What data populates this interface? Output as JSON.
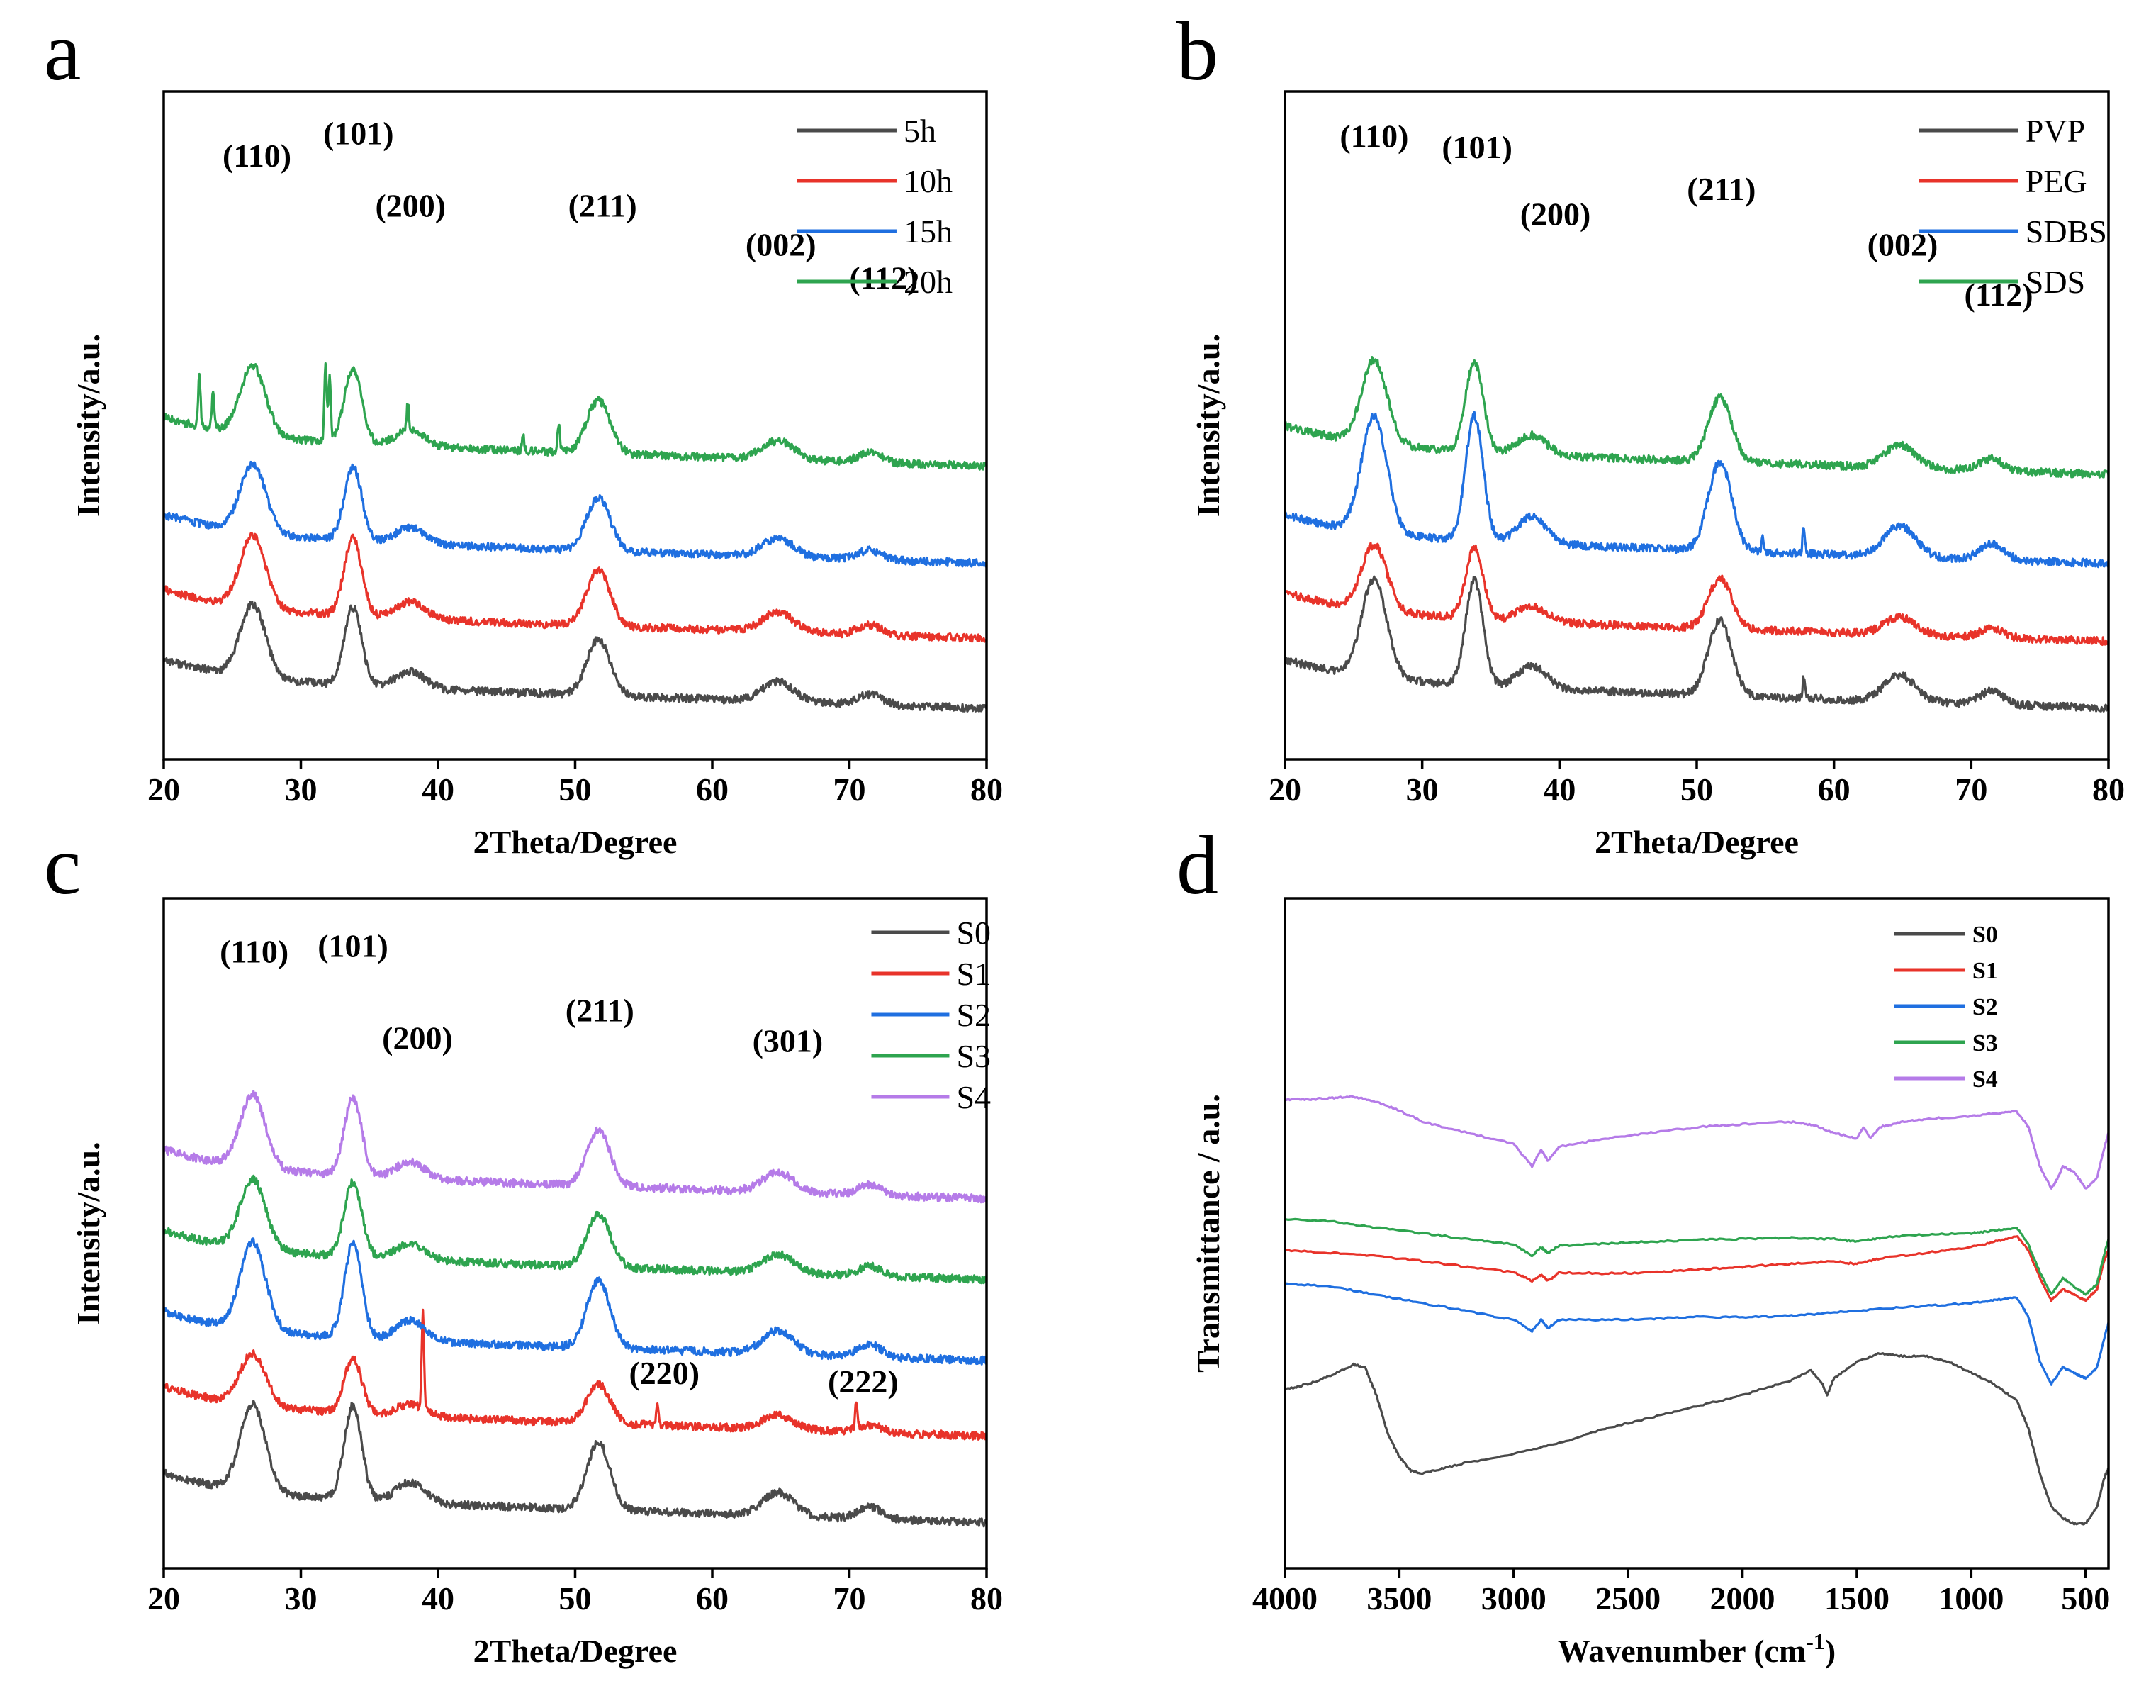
{
  "figure": {
    "description": "Four-panel figure: XRD patterns (a-c) and FTIR spectra (d)"
  },
  "chart_data": [
    {
      "id": "a",
      "type": "line",
      "panel_letter": "a",
      "xlabel": "2Theta/Degree",
      "ylabel": "Intensity/a.u.",
      "xlim": [
        20,
        80
      ],
      "xticks": [
        20,
        30,
        40,
        50,
        60,
        70,
        80
      ],
      "yticks_visible": false,
      "legend_position": "top-right",
      "peak_positions": [
        26.5,
        33.8,
        38,
        51.7,
        64.8,
        71.5
      ],
      "series": [
        {
          "name": "5h",
          "color": "#4a4a4a",
          "offset": 0.0,
          "scale": 1.0,
          "baseline": 0.14,
          "sharp": []
        },
        {
          "name": "10h",
          "color": "#e8332a",
          "offset": 0.145,
          "scale": 1.0,
          "baseline": 0.12,
          "sharp": []
        },
        {
          "name": "15h",
          "color": "#1f6fe0",
          "offset": 0.29,
          "scale": 0.95,
          "baseline": 0.11,
          "sharp": []
        },
        {
          "name": "20h",
          "color": "#2ea44f",
          "offset": 0.435,
          "scale": 0.95,
          "baseline": 0.14,
          "sharp": [
            [
              22.6,
              0.09
            ],
            [
              23.6,
              0.07
            ],
            [
              31.8,
              0.14
            ],
            [
              32.1,
              0.12
            ],
            [
              37.8,
              0.05
            ],
            [
              46.2,
              0.03
            ],
            [
              48.8,
              0.05
            ]
          ]
        }
      ],
      "annotations": [
        {
          "label": "(110)",
          "x": 26.8,
          "y": 1.065
        },
        {
          "label": "(101)",
          "x": 34.2,
          "y": 1.105
        },
        {
          "label": "(200)",
          "x": 38.0,
          "y": 0.975
        },
        {
          "label": "(211)",
          "x": 52.0,
          "y": 0.975
        },
        {
          "label": "(002)",
          "x": 65.0,
          "y": 0.905
        },
        {
          "label": "(112)",
          "x": 72.5,
          "y": 0.845
        }
      ]
    },
    {
      "id": "b",
      "type": "line",
      "panel_letter": "b",
      "xlabel": "2Theta/Degree",
      "ylabel": "Intensity/a.u.",
      "xlim": [
        20,
        80
      ],
      "xticks": [
        20,
        30,
        40,
        50,
        60,
        70,
        80
      ],
      "yticks_visible": false,
      "legend_position": "top-right",
      "peak_positions": [
        26.5,
        33.8,
        38,
        51.7,
        64.8,
        71.5
      ],
      "series": [
        {
          "name": "PVP",
          "color": "#4a4a4a",
          "offset": 0.0,
          "scale": 1.35,
          "baseline": 0.14,
          "sharp": [
            [
              57.8,
              0.04
            ]
          ]
        },
        {
          "name": "PEG",
          "color": "#e8332a",
          "offset": 0.14,
          "scale": 0.9,
          "baseline": 0.12,
          "sharp": []
        },
        {
          "name": "SDBS",
          "color": "#1f6fe0",
          "offset": 0.28,
          "scale": 1.6,
          "baseline": 0.12,
          "sharp": [
            [
              57.8,
              0.05
            ],
            [
              54.8,
              0.03
            ]
          ]
        },
        {
          "name": "SDS",
          "color": "#2ea44f",
          "offset": 0.42,
          "scale": 1.15,
          "baseline": 0.14,
          "sharp": []
        }
      ],
      "annotations": [
        {
          "label": "(110)",
          "x": 26.5,
          "y": 1.1
        },
        {
          "label": "(101)",
          "x": 34.0,
          "y": 1.08
        },
        {
          "label": "(200)",
          "x": 39.7,
          "y": 0.96
        },
        {
          "label": "(211)",
          "x": 51.8,
          "y": 1.005
        },
        {
          "label": "(002)",
          "x": 65.0,
          "y": 0.905
        },
        {
          "label": "(112)",
          "x": 72.0,
          "y": 0.815
        }
      ]
    },
    {
      "id": "c",
      "type": "line",
      "panel_letter": "c",
      "xlabel": "2Theta/Degree",
      "ylabel": "Intensity/a.u.",
      "xlim": [
        20,
        80
      ],
      "xticks": [
        20,
        30,
        40,
        50,
        60,
        70,
        80
      ],
      "yticks_visible": false,
      "legend_position": "top-right",
      "peak_positions": [
        26.5,
        33.8,
        38,
        51.7,
        64.8,
        71.5
      ],
      "series": [
        {
          "name": "S0",
          "color": "#4a4a4a",
          "offset": 0.0,
          "scale": 1.2,
          "baseline": 0.13,
          "sharp": []
        },
        {
          "name": "S1",
          "color": "#e8332a",
          "offset": 0.145,
          "scale": 0.7,
          "baseline": 0.14,
          "sharp": [
            [
              38.9,
              0.17
            ],
            [
              56.0,
              0.04
            ],
            [
              70.5,
              0.05
            ]
          ]
        },
        {
          "name": "S2",
          "color": "#1f6fe0",
          "offset": 0.29,
          "scale": 1.2,
          "baseline": 0.13,
          "sharp": []
        },
        {
          "name": "S3",
          "color": "#2ea44f",
          "offset": 0.435,
          "scale": 0.95,
          "baseline": 0.13,
          "sharp": []
        },
        {
          "name": "S4",
          "color": "#b57be8",
          "offset": 0.58,
          "scale": 1.0,
          "baseline": 0.13,
          "sharp": []
        }
      ],
      "annotations": [
        {
          "label": "(110)",
          "x": 26.6,
          "y": 1.085
        },
        {
          "label": "(101)",
          "x": 33.8,
          "y": 1.095
        },
        {
          "label": "(200)",
          "x": 38.5,
          "y": 0.93
        },
        {
          "label": "(211)",
          "x": 51.8,
          "y": 0.98
        },
        {
          "label": "(301)",
          "x": 65.5,
          "y": 0.925
        },
        {
          "label": "(220)",
          "x": 56.5,
          "y": 0.33
        },
        {
          "label": "(222)",
          "x": 71.0,
          "y": 0.315
        }
      ]
    },
    {
      "id": "d",
      "type": "line",
      "panel_letter": "d",
      "xlabel": "Wavenumber (cm",
      "xlabel_sup": "-1",
      "xlabel_end": ")",
      "ylabel": "Transmittance / a.u.",
      "xlim": [
        4000,
        400
      ],
      "xticks": [
        4000,
        3500,
        3000,
        2500,
        2000,
        1500,
        1000,
        500
      ],
      "yticks_visible": false,
      "legend_position": "top-right",
      "series": [
        {
          "name": "S0",
          "color": "#4a4a4a",
          "points": [
            [
              4000,
              0.32
            ],
            [
              3900,
              0.33
            ],
            [
              3800,
              0.345
            ],
            [
              3700,
              0.365
            ],
            [
              3650,
              0.36
            ],
            [
              3600,
              0.31
            ],
            [
              3550,
              0.24
            ],
            [
              3500,
              0.2
            ],
            [
              3450,
              0.175
            ],
            [
              3400,
              0.17
            ],
            [
              3300,
              0.18
            ],
            [
              3200,
              0.19
            ],
            [
              3000,
              0.205
            ],
            [
              2800,
              0.225
            ],
            [
              2600,
              0.25
            ],
            [
              2400,
              0.27
            ],
            [
              2200,
              0.29
            ],
            [
              2000,
              0.31
            ],
            [
              1800,
              0.335
            ],
            [
              1700,
              0.355
            ],
            [
              1650,
              0.33
            ],
            [
              1630,
              0.31
            ],
            [
              1600,
              0.34
            ],
            [
              1500,
              0.37
            ],
            [
              1400,
              0.385
            ],
            [
              1300,
              0.38
            ],
            [
              1200,
              0.38
            ],
            [
              1100,
              0.37
            ],
            [
              1000,
              0.35
            ],
            [
              900,
              0.33
            ],
            [
              800,
              0.3
            ],
            [
              750,
              0.25
            ],
            [
              700,
              0.17
            ],
            [
              650,
              0.11
            ],
            [
              600,
              0.09
            ],
            [
              550,
              0.08
            ],
            [
              500,
              0.08
            ],
            [
              450,
              0.11
            ],
            [
              420,
              0.16
            ],
            [
              400,
              0.18
            ]
          ]
        },
        {
          "name": "S1",
          "color": "#e8332a",
          "points": [
            [
              4000,
              0.57
            ],
            [
              3800,
              0.565
            ],
            [
              3600,
              0.56
            ],
            [
              3400,
              0.55
            ],
            [
              3200,
              0.54
            ],
            [
              3000,
              0.53
            ],
            [
              2920,
              0.515
            ],
            [
              2880,
              0.525
            ],
            [
              2850,
              0.515
            ],
            [
              2800,
              0.53
            ],
            [
              2600,
              0.528
            ],
            [
              2400,
              0.53
            ],
            [
              2200,
              0.535
            ],
            [
              2000,
              0.54
            ],
            [
              1800,
              0.545
            ],
            [
              1600,
              0.55
            ],
            [
              1500,
              0.545
            ],
            [
              1400,
              0.555
            ],
            [
              1200,
              0.565
            ],
            [
              1000,
              0.575
            ],
            [
              900,
              0.585
            ],
            [
              800,
              0.595
            ],
            [
              750,
              0.57
            ],
            [
              700,
              0.52
            ],
            [
              650,
              0.48
            ],
            [
              600,
              0.5
            ],
            [
              550,
              0.49
            ],
            [
              500,
              0.48
            ],
            [
              450,
              0.5
            ],
            [
              420,
              0.55
            ],
            [
              400,
              0.57
            ]
          ]
        },
        {
          "name": "S2",
          "color": "#1f6fe0",
          "points": [
            [
              4000,
              0.51
            ],
            [
              3800,
              0.505
            ],
            [
              3600,
              0.49
            ],
            [
              3400,
              0.475
            ],
            [
              3200,
              0.46
            ],
            [
              3000,
              0.445
            ],
            [
              2920,
              0.425
            ],
            [
              2880,
              0.445
            ],
            [
              2850,
              0.43
            ],
            [
              2800,
              0.445
            ],
            [
              2600,
              0.445
            ],
            [
              2400,
              0.447
            ],
            [
              2200,
              0.45
            ],
            [
              2000,
              0.45
            ],
            [
              1800,
              0.452
            ],
            [
              1600,
              0.458
            ],
            [
              1400,
              0.465
            ],
            [
              1200,
              0.47
            ],
            [
              1000,
              0.475
            ],
            [
              900,
              0.48
            ],
            [
              800,
              0.485
            ],
            [
              750,
              0.45
            ],
            [
              700,
              0.37
            ],
            [
              650,
              0.33
            ],
            [
              600,
              0.36
            ],
            [
              550,
              0.35
            ],
            [
              500,
              0.34
            ],
            [
              450,
              0.36
            ],
            [
              420,
              0.41
            ],
            [
              400,
              0.44
            ]
          ]
        },
        {
          "name": "S3",
          "color": "#2ea44f",
          "points": [
            [
              4000,
              0.625
            ],
            [
              3800,
              0.622
            ],
            [
              3600,
              0.61
            ],
            [
              3400,
              0.6
            ],
            [
              3200,
              0.59
            ],
            [
              3000,
              0.58
            ],
            [
              2920,
              0.56
            ],
            [
              2880,
              0.575
            ],
            [
              2850,
              0.565
            ],
            [
              2800,
              0.578
            ],
            [
              2600,
              0.582
            ],
            [
              2400,
              0.585
            ],
            [
              2200,
              0.588
            ],
            [
              2000,
              0.59
            ],
            [
              1800,
              0.592
            ],
            [
              1600,
              0.59
            ],
            [
              1500,
              0.585
            ],
            [
              1400,
              0.592
            ],
            [
              1200,
              0.598
            ],
            [
              1000,
              0.6
            ],
            [
              900,
              0.605
            ],
            [
              800,
              0.61
            ],
            [
              750,
              0.58
            ],
            [
              700,
              0.53
            ],
            [
              650,
              0.49
            ],
            [
              600,
              0.52
            ],
            [
              550,
              0.505
            ],
            [
              500,
              0.49
            ],
            [
              450,
              0.51
            ],
            [
              420,
              0.56
            ],
            [
              400,
              0.59
            ]
          ]
        },
        {
          "name": "S4",
          "color": "#b57be8",
          "points": [
            [
              4000,
              0.84
            ],
            [
              3900,
              0.84
            ],
            [
              3800,
              0.842
            ],
            [
              3700,
              0.845
            ],
            [
              3600,
              0.835
            ],
            [
              3500,
              0.82
            ],
            [
              3400,
              0.8
            ],
            [
              3200,
              0.78
            ],
            [
              3000,
              0.76
            ],
            [
              2920,
              0.72
            ],
            [
              2880,
              0.75
            ],
            [
              2850,
              0.73
            ],
            [
              2800,
              0.755
            ],
            [
              2600,
              0.77
            ],
            [
              2400,
              0.78
            ],
            [
              2200,
              0.79
            ],
            [
              2000,
              0.795
            ],
            [
              1800,
              0.8
            ],
            [
              1700,
              0.795
            ],
            [
              1600,
              0.78
            ],
            [
              1500,
              0.77
            ],
            [
              1470,
              0.79
            ],
            [
              1440,
              0.77
            ],
            [
              1400,
              0.79
            ],
            [
              1300,
              0.8
            ],
            [
              1200,
              0.805
            ],
            [
              1000,
              0.81
            ],
            [
              900,
              0.815
            ],
            [
              800,
              0.818
            ],
            [
              750,
              0.79
            ],
            [
              700,
              0.72
            ],
            [
              650,
              0.68
            ],
            [
              620,
              0.7
            ],
            [
              600,
              0.72
            ],
            [
              550,
              0.71
            ],
            [
              500,
              0.68
            ],
            [
              450,
              0.7
            ],
            [
              420,
              0.75
            ],
            [
              400,
              0.78
            ]
          ]
        }
      ]
    }
  ]
}
